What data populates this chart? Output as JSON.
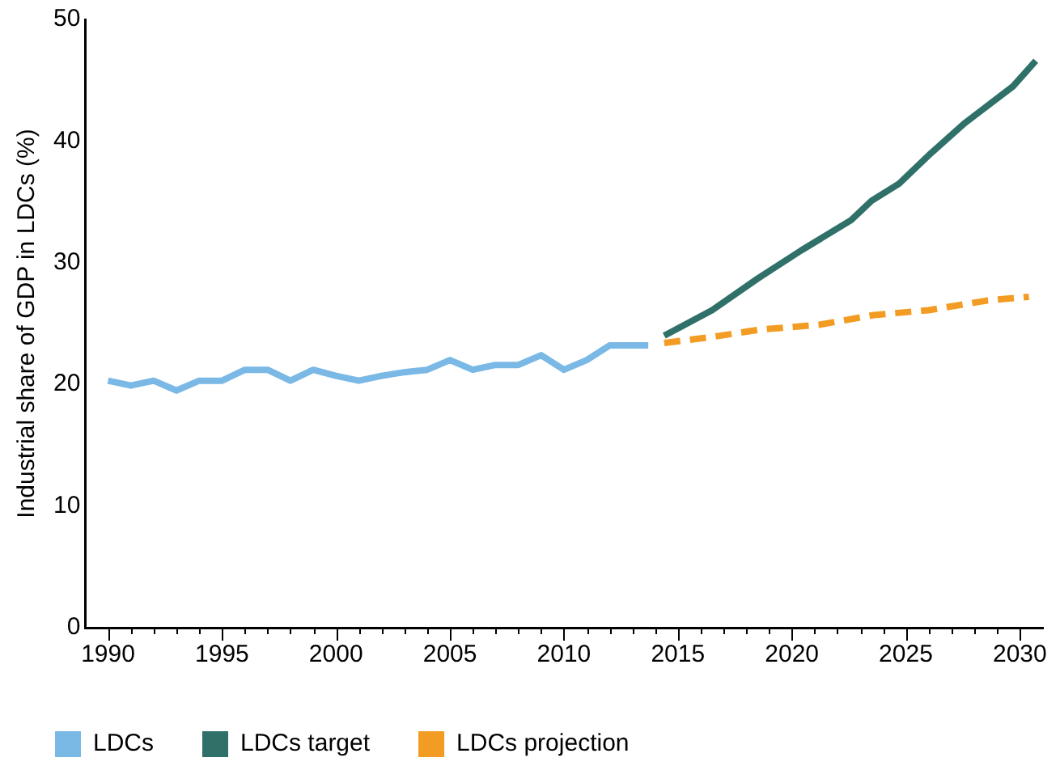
{
  "chart_data": {
    "type": "line",
    "ylabel": "Industrial share of GDP in LDCs (%)",
    "xlim": [
      1989,
      2031
    ],
    "ylim": [
      0,
      50
    ],
    "xticks": [
      1990,
      {
        "value": 1991,
        "label": null
      },
      {
        "value": 1992,
        "label": null
      },
      {
        "value": 1993,
        "label": null
      },
      {
        "value": 1994,
        "label": null
      },
      1995,
      {
        "value": 1996,
        "label": null
      },
      {
        "value": 1997,
        "label": null
      },
      {
        "value": 1998,
        "label": null
      },
      {
        "value": 1999,
        "label": null
      },
      2000,
      {
        "value": 2001,
        "label": null
      },
      {
        "value": 2002,
        "label": null
      },
      {
        "value": 2003,
        "label": null
      },
      {
        "value": 2004,
        "label": null
      },
      2005,
      {
        "value": 2006,
        "label": null
      },
      {
        "value": 2007,
        "label": null
      },
      {
        "value": 2008,
        "label": null
      },
      {
        "value": 2009,
        "label": null
      },
      2010,
      {
        "value": 2011,
        "label": null
      },
      {
        "value": 2012,
        "label": null
      },
      {
        "value": 2013,
        "label": null
      },
      {
        "value": 2014,
        "label": null
      },
      2015,
      {
        "value": 2016,
        "label": null
      },
      {
        "value": 2017,
        "label": null
      },
      {
        "value": 2018,
        "label": null
      },
      {
        "value": 2019,
        "label": null
      },
      2020,
      {
        "value": 2021,
        "label": null
      },
      {
        "value": 2022,
        "label": null
      },
      {
        "value": 2023,
        "label": null
      },
      {
        "value": 2024,
        "label": null
      },
      2025,
      {
        "value": 2026,
        "label": null
      },
      {
        "value": 2027,
        "label": null
      },
      {
        "value": 2028,
        "label": null
      },
      {
        "value": 2029,
        "label": null
      },
      2030
    ],
    "yticks": [
      0,
      10,
      20,
      30,
      40,
      50
    ],
    "grid": false,
    "legend": "bottom",
    "marker": "none",
    "series": [
      {
        "name": "LDCs",
        "color": "#7ab8e6",
        "line_style": "solid",
        "x": [
          1990,
          1991,
          1992,
          1993,
          1994,
          1995,
          1996,
          1997,
          1998,
          1999,
          2000,
          2001,
          2002,
          2003,
          2004,
          2005,
          2006,
          2007,
          2008,
          2009,
          2010,
          2011,
          2012,
          2013.7
        ],
        "values": [
          20.3,
          19.9,
          20.3,
          19.5,
          20.3,
          20.3,
          21.2,
          21.2,
          20.3,
          21.2,
          20.7,
          20.3,
          20.7,
          21.0,
          21.2,
          22.0,
          21.2,
          21.6,
          21.6,
          22.4,
          21.2,
          22.0,
          23.2,
          23.2
        ]
      },
      {
        "name": "LDCs target",
        "color": "#2f7068",
        "line_style": "solid",
        "x": [
          2014.4,
          2016.5,
          2018.5,
          2020.4,
          2022.6,
          2023.5,
          2024.7,
          2026.1,
          2027.6,
          2029.7,
          2030.7
        ],
        "values": [
          24.0,
          26.1,
          28.7,
          31.0,
          33.5,
          35.1,
          36.5,
          39.0,
          41.5,
          44.5,
          46.6
        ]
      },
      {
        "name": "LDCs projection",
        "color": "#f39c24",
        "line_style": "dashed",
        "x": [
          2014.4,
          2016.5,
          2018.6,
          2021.2,
          2023.6,
          2026.0,
          2028.6,
          2030.4
        ],
        "values": [
          23.4,
          23.9,
          24.5,
          24.9,
          25.7,
          26.1,
          26.9,
          27.2
        ]
      }
    ]
  }
}
